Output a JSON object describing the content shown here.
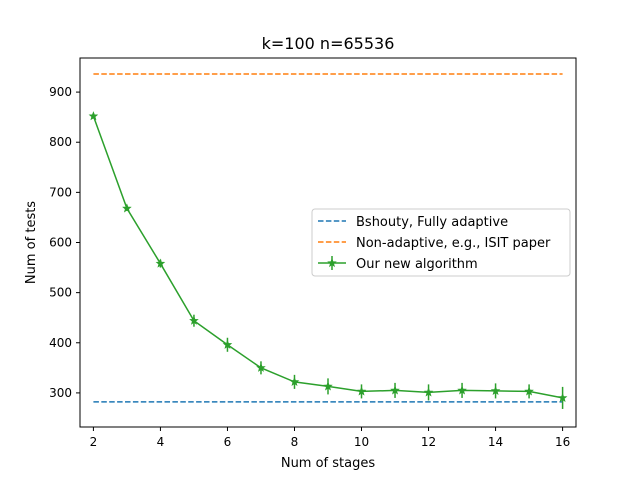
{
  "chart_data": {
    "type": "line",
    "title": "k=100 n=65536",
    "xlabel": "Num of stages",
    "ylabel": "Num of tests",
    "xlim": [
      1.6,
      16.4
    ],
    "ylim": [
      232,
      968
    ],
    "x_ticks": [
      2,
      4,
      6,
      8,
      10,
      12,
      14,
      16
    ],
    "y_ticks": [
      300,
      400,
      500,
      600,
      700,
      800,
      900
    ],
    "grid": false,
    "legend_position": "center-right",
    "series": [
      {
        "name": "Bshouty, Fully adaptive",
        "style": "dashed",
        "color": "#1f77b4",
        "x": [
          2,
          16
        ],
        "y": [
          282,
          282
        ]
      },
      {
        "name": "Non-adaptive, e.g., ISIT paper",
        "style": "dashed",
        "color": "#ff7f0e",
        "x": [
          2,
          16
        ],
        "y": [
          936,
          936
        ]
      },
      {
        "name": "Our new algorithm",
        "style": "solid",
        "marker": "star",
        "color": "#2ca02c",
        "x": [
          2,
          3,
          4,
          5,
          6,
          7,
          8,
          9,
          10,
          11,
          12,
          13,
          14,
          15,
          16
        ],
        "y": [
          852,
          668,
          558,
          444,
          396,
          350,
          322,
          313,
          303,
          305,
          301,
          305,
          304,
          303,
          290
        ],
        "err": [
          5,
          5,
          8,
          12,
          14,
          13,
          14,
          16,
          14,
          15,
          16,
          15,
          15,
          14,
          22
        ]
      }
    ]
  }
}
